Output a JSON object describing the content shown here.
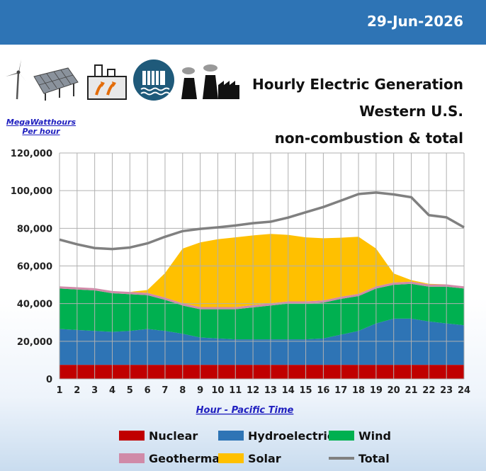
{
  "header": {
    "date": "29-Jun-2026"
  },
  "title_lines": [
    "Hourly Electric Generation",
    "Western U.S.",
    "non-combustion & total"
  ],
  "units_lines": [
    "MegaWatthours",
    "Per hour"
  ],
  "icons": [
    "wind-turbine-icon",
    "solar-panel-icon",
    "geothermal-plant-icon",
    "hydro-dam-icon",
    "power-plant-icon"
  ],
  "colors": {
    "header_bg": "#2e74b5",
    "nuclear": "#c00000",
    "hydro": "#2e74b5",
    "wind": "#00b050",
    "geothermal": "#d08aa8",
    "solar": "#ffc000",
    "total": "#808080"
  },
  "chart_data": {
    "type": "area",
    "stacked": true,
    "xlabel": "Hour - Pacific Time",
    "ylabel": "",
    "x": [
      1,
      2,
      3,
      4,
      5,
      6,
      7,
      8,
      9,
      10,
      11,
      12,
      13,
      14,
      15,
      16,
      17,
      18,
      19,
      20,
      21,
      22,
      23,
      24
    ],
    "ylim": [
      0,
      120000
    ],
    "yticks": [
      "0",
      "20,000",
      "40,000",
      "60,000",
      "80,000",
      "100,000",
      "120,000"
    ],
    "grid": true,
    "legend_position": "bottom",
    "series": [
      {
        "name": "Nuclear",
        "color": "#c00000",
        "values": [
          7500,
          7500,
          7500,
          7500,
          7500,
          7500,
          7500,
          7500,
          7500,
          7500,
          7500,
          7500,
          7500,
          7500,
          7500,
          7500,
          7500,
          7500,
          7500,
          7500,
          7500,
          7500,
          7500,
          7500
        ]
      },
      {
        "name": "Hydroelectric",
        "color": "#2e74b5",
        "values": [
          19000,
          18500,
          18000,
          17500,
          18000,
          19000,
          18000,
          16500,
          14500,
          14000,
          13500,
          13500,
          13500,
          13500,
          13500,
          14000,
          16000,
          18000,
          22000,
          24500,
          24500,
          23000,
          22000,
          21000
        ]
      },
      {
        "name": "Wind",
        "color": "#00b050",
        "values": [
          21500,
          21500,
          21500,
          20500,
          19500,
          18000,
          16500,
          15000,
          15000,
          15500,
          16000,
          17000,
          18000,
          19000,
          19000,
          19000,
          19000,
          18500,
          18500,
          18000,
          18500,
          18500,
          19500,
          19500
        ]
      },
      {
        "name": "Geothermal",
        "color": "#d08aa8",
        "values": [
          1200,
          1200,
          1200,
          1200,
          1200,
          1200,
          1200,
          1200,
          1200,
          1200,
          1200,
          1200,
          1200,
          1200,
          1200,
          1200,
          1200,
          1200,
          1200,
          1200,
          1200,
          1200,
          1200,
          1200
        ]
      },
      {
        "name": "Solar",
        "color": "#ffc000",
        "values": [
          0,
          0,
          0,
          0,
          0,
          1500,
          13000,
          29000,
          34300,
          36000,
          37000,
          37000,
          36800,
          35300,
          34000,
          33000,
          31300,
          30300,
          20000,
          4800,
          800,
          300,
          0,
          0
        ]
      }
    ],
    "total": {
      "name": "Total",
      "color": "#808080",
      "values": [
        74000,
        71500,
        69500,
        69000,
        69800,
        72000,
        75500,
        78500,
        79700,
        80500,
        81500,
        82700,
        83500,
        85700,
        88500,
        91300,
        94700,
        98200,
        99000,
        98000,
        96500,
        87000,
        85800,
        80500
      ]
    }
  }
}
